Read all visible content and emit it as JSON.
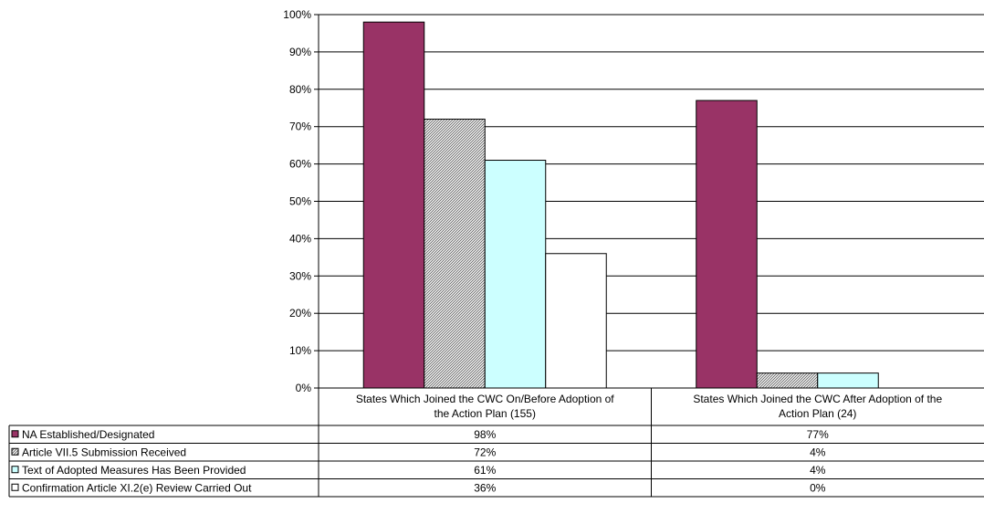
{
  "chart_data": {
    "type": "bar",
    "categories": [
      "States Which Joined the CWC On/Before Adoption of the Action Plan (155)",
      "States Which Joined the CWC After Adoption of the Action Plan (24)"
    ],
    "category_lines": [
      [
        "States Which Joined the CWC On/Before Adoption of",
        "the Action Plan (155)"
      ],
      [
        "States Which Joined the CWC After Adoption of the",
        "Action Plan (24)"
      ]
    ],
    "series": [
      {
        "name": "NA Established/Designated",
        "values": [
          98,
          77
        ],
        "labels": [
          "98%",
          "77%"
        ],
        "color": "#993366",
        "pattern": "solid"
      },
      {
        "name": "Article VII.5 Submission Received",
        "values": [
          72,
          4
        ],
        "labels": [
          "72%",
          "4%"
        ],
        "color": "#808080",
        "pattern": "diagonal-hatch"
      },
      {
        "name": "Text of Adopted Measures Has Been Provided",
        "values": [
          61,
          4
        ],
        "labels": [
          "61%",
          "4%"
        ],
        "color": "#ccffff",
        "pattern": "solid"
      },
      {
        "name": "Confirmation Article XI.2(e) Review Carried Out",
        "values": [
          36,
          0
        ],
        "labels": [
          "36%",
          "0%"
        ],
        "color": "#ffffff",
        "pattern": "solid"
      }
    ],
    "ylim": [
      0,
      100
    ],
    "yticks": [
      "0%",
      "10%",
      "20%",
      "30%",
      "40%",
      "50%",
      "60%",
      "70%",
      "80%",
      "90%",
      "100%"
    ],
    "grid": true,
    "legend": "data-table"
  }
}
